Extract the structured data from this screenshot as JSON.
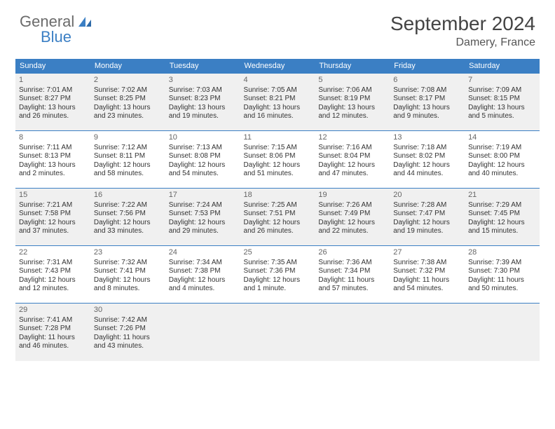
{
  "logo": {
    "word1": "General",
    "word2": "Blue"
  },
  "title": "September 2024",
  "location": "Damery, France",
  "colors": {
    "header_bg": "#3b7fc4",
    "header_text": "#ffffff",
    "shade_bg": "#f0f0f0",
    "text": "#333333",
    "cell_border": "#3b7fc4"
  },
  "day_headers": [
    "Sunday",
    "Monday",
    "Tuesday",
    "Wednesday",
    "Thursday",
    "Friday",
    "Saturday"
  ],
  "weeks": [
    [
      {
        "n": "1",
        "shade": true,
        "sr": "Sunrise: 7:01 AM",
        "ss": "Sunset: 8:27 PM",
        "d1": "Daylight: 13 hours",
        "d2": "and 26 minutes."
      },
      {
        "n": "2",
        "shade": true,
        "sr": "Sunrise: 7:02 AM",
        "ss": "Sunset: 8:25 PM",
        "d1": "Daylight: 13 hours",
        "d2": "and 23 minutes."
      },
      {
        "n": "3",
        "shade": true,
        "sr": "Sunrise: 7:03 AM",
        "ss": "Sunset: 8:23 PM",
        "d1": "Daylight: 13 hours",
        "d2": "and 19 minutes."
      },
      {
        "n": "4",
        "shade": true,
        "sr": "Sunrise: 7:05 AM",
        "ss": "Sunset: 8:21 PM",
        "d1": "Daylight: 13 hours",
        "d2": "and 16 minutes."
      },
      {
        "n": "5",
        "shade": true,
        "sr": "Sunrise: 7:06 AM",
        "ss": "Sunset: 8:19 PM",
        "d1": "Daylight: 13 hours",
        "d2": "and 12 minutes."
      },
      {
        "n": "6",
        "shade": true,
        "sr": "Sunrise: 7:08 AM",
        "ss": "Sunset: 8:17 PM",
        "d1": "Daylight: 13 hours",
        "d2": "and 9 minutes."
      },
      {
        "n": "7",
        "shade": true,
        "sr": "Sunrise: 7:09 AM",
        "ss": "Sunset: 8:15 PM",
        "d1": "Daylight: 13 hours",
        "d2": "and 5 minutes."
      }
    ],
    [
      {
        "n": "8",
        "shade": false,
        "sr": "Sunrise: 7:11 AM",
        "ss": "Sunset: 8:13 PM",
        "d1": "Daylight: 13 hours",
        "d2": "and 2 minutes."
      },
      {
        "n": "9",
        "shade": false,
        "sr": "Sunrise: 7:12 AM",
        "ss": "Sunset: 8:11 PM",
        "d1": "Daylight: 12 hours",
        "d2": "and 58 minutes."
      },
      {
        "n": "10",
        "shade": false,
        "sr": "Sunrise: 7:13 AM",
        "ss": "Sunset: 8:08 PM",
        "d1": "Daylight: 12 hours",
        "d2": "and 54 minutes."
      },
      {
        "n": "11",
        "shade": false,
        "sr": "Sunrise: 7:15 AM",
        "ss": "Sunset: 8:06 PM",
        "d1": "Daylight: 12 hours",
        "d2": "and 51 minutes."
      },
      {
        "n": "12",
        "shade": false,
        "sr": "Sunrise: 7:16 AM",
        "ss": "Sunset: 8:04 PM",
        "d1": "Daylight: 12 hours",
        "d2": "and 47 minutes."
      },
      {
        "n": "13",
        "shade": false,
        "sr": "Sunrise: 7:18 AM",
        "ss": "Sunset: 8:02 PM",
        "d1": "Daylight: 12 hours",
        "d2": "and 44 minutes."
      },
      {
        "n": "14",
        "shade": false,
        "sr": "Sunrise: 7:19 AM",
        "ss": "Sunset: 8:00 PM",
        "d1": "Daylight: 12 hours",
        "d2": "and 40 minutes."
      }
    ],
    [
      {
        "n": "15",
        "shade": true,
        "sr": "Sunrise: 7:21 AM",
        "ss": "Sunset: 7:58 PM",
        "d1": "Daylight: 12 hours",
        "d2": "and 37 minutes."
      },
      {
        "n": "16",
        "shade": true,
        "sr": "Sunrise: 7:22 AM",
        "ss": "Sunset: 7:56 PM",
        "d1": "Daylight: 12 hours",
        "d2": "and 33 minutes."
      },
      {
        "n": "17",
        "shade": true,
        "sr": "Sunrise: 7:24 AM",
        "ss": "Sunset: 7:53 PM",
        "d1": "Daylight: 12 hours",
        "d2": "and 29 minutes."
      },
      {
        "n": "18",
        "shade": true,
        "sr": "Sunrise: 7:25 AM",
        "ss": "Sunset: 7:51 PM",
        "d1": "Daylight: 12 hours",
        "d2": "and 26 minutes."
      },
      {
        "n": "19",
        "shade": true,
        "sr": "Sunrise: 7:26 AM",
        "ss": "Sunset: 7:49 PM",
        "d1": "Daylight: 12 hours",
        "d2": "and 22 minutes."
      },
      {
        "n": "20",
        "shade": true,
        "sr": "Sunrise: 7:28 AM",
        "ss": "Sunset: 7:47 PM",
        "d1": "Daylight: 12 hours",
        "d2": "and 19 minutes."
      },
      {
        "n": "21",
        "shade": true,
        "sr": "Sunrise: 7:29 AM",
        "ss": "Sunset: 7:45 PM",
        "d1": "Daylight: 12 hours",
        "d2": "and 15 minutes."
      }
    ],
    [
      {
        "n": "22",
        "shade": false,
        "sr": "Sunrise: 7:31 AM",
        "ss": "Sunset: 7:43 PM",
        "d1": "Daylight: 12 hours",
        "d2": "and 12 minutes."
      },
      {
        "n": "23",
        "shade": false,
        "sr": "Sunrise: 7:32 AM",
        "ss": "Sunset: 7:41 PM",
        "d1": "Daylight: 12 hours",
        "d2": "and 8 minutes."
      },
      {
        "n": "24",
        "shade": false,
        "sr": "Sunrise: 7:34 AM",
        "ss": "Sunset: 7:38 PM",
        "d1": "Daylight: 12 hours",
        "d2": "and 4 minutes."
      },
      {
        "n": "25",
        "shade": false,
        "sr": "Sunrise: 7:35 AM",
        "ss": "Sunset: 7:36 PM",
        "d1": "Daylight: 12 hours",
        "d2": "and 1 minute."
      },
      {
        "n": "26",
        "shade": false,
        "sr": "Sunrise: 7:36 AM",
        "ss": "Sunset: 7:34 PM",
        "d1": "Daylight: 11 hours",
        "d2": "and 57 minutes."
      },
      {
        "n": "27",
        "shade": false,
        "sr": "Sunrise: 7:38 AM",
        "ss": "Sunset: 7:32 PM",
        "d1": "Daylight: 11 hours",
        "d2": "and 54 minutes."
      },
      {
        "n": "28",
        "shade": false,
        "sr": "Sunrise: 7:39 AM",
        "ss": "Sunset: 7:30 PM",
        "d1": "Daylight: 11 hours",
        "d2": "and 50 minutes."
      }
    ],
    [
      {
        "n": "29",
        "shade": true,
        "sr": "Sunrise: 7:41 AM",
        "ss": "Sunset: 7:28 PM",
        "d1": "Daylight: 11 hours",
        "d2": "and 46 minutes."
      },
      {
        "n": "30",
        "shade": true,
        "sr": "Sunrise: 7:42 AM",
        "ss": "Sunset: 7:26 PM",
        "d1": "Daylight: 11 hours",
        "d2": "and 43 minutes."
      },
      {
        "n": "",
        "shade": true
      },
      {
        "n": "",
        "shade": true
      },
      {
        "n": "",
        "shade": true
      },
      {
        "n": "",
        "shade": true
      },
      {
        "n": "",
        "shade": true
      }
    ]
  ]
}
